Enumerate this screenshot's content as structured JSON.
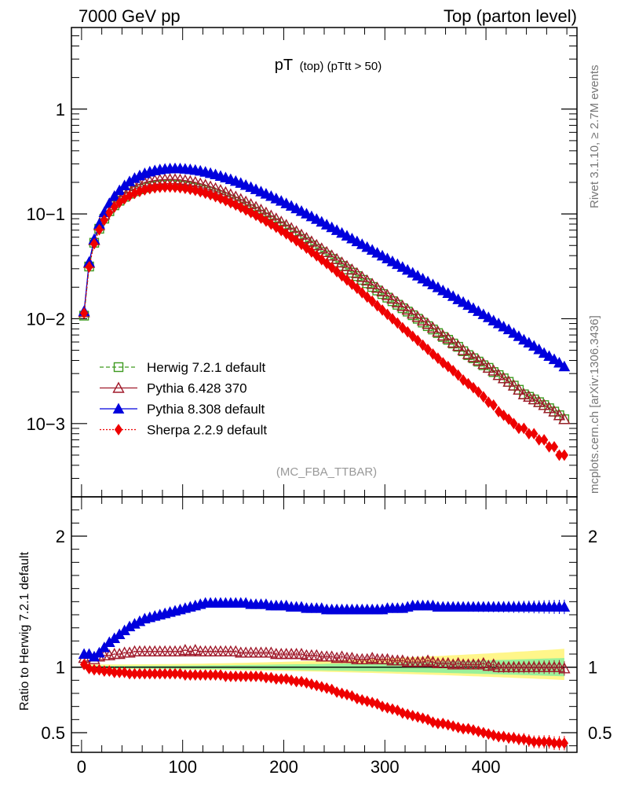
{
  "header": {
    "left": "7000 GeV pp",
    "right": "Top (parton level)",
    "title_main": "pT",
    "title_sub": "(top) (pTtt > 50)",
    "analysis": "(MC_FBA_TTBAR)"
  },
  "side_labels": {
    "rivet": "Rivet 3.1.10, ≥ 2.7M events",
    "mcplots": "mcplots.cern.ch [arXiv:1306.3436]"
  },
  "colors": {
    "herwig": "#3d9a1f",
    "pythia6": "#a0192a",
    "pythia8": "#0000dd",
    "sherpa": "#ee0000",
    "band_green": "#9af09a",
    "band_yellow": "#fff68a"
  },
  "chart_data": [
    {
      "type": "line",
      "scale": "log",
      "xlim": [
        -10,
        490
      ],
      "ylim": [
        0.0002,
        6
      ],
      "ylabel": "",
      "xlabel": "",
      "yticks": [
        {
          "value": 1,
          "label": "1"
        },
        {
          "value": 0.1,
          "label": "10−1"
        },
        {
          "value": 0.01,
          "label": "10−2"
        },
        {
          "value": 0.001,
          "label": "10−3"
        }
      ],
      "legend_position": "lower-left",
      "x": [
        2.5,
        7.5,
        12.5,
        17.5,
        22.5,
        27.5,
        32.5,
        37.5,
        42.5,
        47.5,
        52.5,
        57.5,
        62.5,
        67.5,
        72.5,
        77.5,
        82.5,
        87.5,
        92.5,
        97.5,
        102.5,
        107.5,
        112.5,
        117.5,
        122.5,
        127.5,
        132.5,
        137.5,
        142.5,
        147.5,
        152.5,
        157.5,
        162.5,
        167.5,
        172.5,
        177.5,
        182.5,
        187.5,
        192.5,
        197.5,
        202.5,
        207.5,
        212.5,
        217.5,
        222.5,
        227.5,
        232.5,
        237.5,
        242.5,
        247.5,
        252.5,
        257.5,
        262.5,
        267.5,
        272.5,
        277.5,
        282.5,
        287.5,
        292.5,
        297.5,
        302.5,
        307.5,
        312.5,
        317.5,
        322.5,
        327.5,
        332.5,
        337.5,
        342.5,
        347.5,
        352.5,
        357.5,
        362.5,
        367.5,
        372.5,
        377.5,
        382.5,
        387.5,
        392.5,
        397.5,
        402.5,
        407.5,
        412.5,
        417.5,
        422.5,
        427.5,
        432.5,
        437.5,
        442.5,
        447.5,
        452.5,
        457.5,
        462.5,
        467.5,
        472.5,
        477.5
      ],
      "series": [
        {
          "name": "Herwig 7.2.1 default",
          "marker": "open-square",
          "line": "dashed",
          "values": [
            0.0107,
            0.0315,
            0.0531,
            0.0722,
            0.0901,
            0.1061,
            0.1208,
            0.1336,
            0.1456,
            0.1559,
            0.1645,
            0.1719,
            0.1782,
            0.183,
            0.1867,
            0.1891,
            0.1903,
            0.1905,
            0.1897,
            0.188,
            0.1853,
            0.182,
            0.1779,
            0.1732,
            0.1679,
            0.1623,
            0.1562,
            0.15,
            0.1436,
            0.137,
            0.1305,
            0.1238,
            0.1172,
            0.1109,
            0.1047,
            0.0984,
            0.0926,
            0.0868,
            0.0815,
            0.0763,
            0.0711,
            0.0665,
            0.062,
            0.0577,
            0.0538,
            0.05,
            0.0464,
            0.0432,
            0.0401,
            0.0372,
            0.0345,
            0.0319,
            0.0296,
            0.0275,
            0.0255,
            0.0235,
            0.0218,
            0.0201,
            0.0186,
            0.0172,
            0.0159,
            0.0147,
            0.0136,
            0.0126,
            0.0117,
            0.0108,
            0.01,
            0.0092,
            0.0085,
            0.0079,
            0.0073,
            0.0067,
            0.0063,
            0.0058,
            0.0054,
            0.0049,
            0.0045,
            0.0042,
            0.0039,
            0.0036,
            0.0034,
            0.0031,
            0.0029,
            0.0027,
            0.0025,
            0.0023,
            0.0021,
            0.0019,
            0.0018,
            0.0017,
            0.0016,
            0.0015,
            0.0014,
            0.0013,
            0.0012,
            0.0011
          ]
        },
        {
          "name": "Pythia 6.428 370",
          "marker": "open-triangle",
          "line": "solid",
          "values": [
            0.0115,
            0.034,
            0.0561,
            0.0777,
            0.0983,
            0.1159,
            0.1329,
            0.1473,
            0.1618,
            0.1737,
            0.1839,
            0.192,
            0.1994,
            0.2049,
            0.2088,
            0.2117,
            0.213,
            0.2137,
            0.2133,
            0.2115,
            0.2085,
            0.2046,
            0.2004,
            0.1946,
            0.1885,
            0.182,
            0.175,
            0.168,
            0.1604,
            0.1531,
            0.1456,
            0.1379,
            0.1305,
            0.1233,
            0.1162,
            0.1092,
            0.1025,
            0.0961,
            0.09,
            0.084,
            0.0782,
            0.073,
            0.068,
            0.0632,
            0.0587,
            0.0544,
            0.0504,
            0.0467,
            0.0431,
            0.04,
            0.037,
            0.0343,
            0.0317,
            0.0294,
            0.0271,
            0.025,
            0.0231,
            0.0214,
            0.0197,
            0.0182,
            0.0168,
            0.0155,
            0.0143,
            0.0132,
            0.0122,
            0.0112,
            0.0104,
            0.0096,
            0.0089,
            0.0082,
            0.0075,
            0.0069,
            0.0065,
            0.0059,
            0.0055,
            0.005,
            0.0046,
            0.0043,
            0.004,
            0.0037,
            0.0034,
            0.0032,
            0.0029,
            0.0027,
            0.0025,
            0.0023,
            0.0021,
            0.0019,
            0.0018,
            0.0017,
            0.0016,
            0.0015,
            0.0014,
            0.0013,
            0.0012,
            0.0011
          ]
        },
        {
          "name": "Pythia 8.308 default",
          "marker": "filled-triangle",
          "line": "solid",
          "values": [
            0.0118,
            0.0347,
            0.0573,
            0.0803,
            0.1036,
            0.1262,
            0.1478,
            0.1675,
            0.1867,
            0.2037,
            0.2193,
            0.2321,
            0.2435,
            0.2525,
            0.2595,
            0.2648,
            0.2684,
            0.2705,
            0.2714,
            0.2707,
            0.2687,
            0.2658,
            0.262,
            0.2572,
            0.2514,
            0.2445,
            0.2374,
            0.2297,
            0.2219,
            0.2137,
            0.2054,
            0.1969,
            0.1881,
            0.1797,
            0.1715,
            0.1632,
            0.1554,
            0.1476,
            0.1401,
            0.1328,
            0.1257,
            0.119,
            0.1126,
            0.1063,
            0.1003,
            0.0946,
            0.0891,
            0.0839,
            0.0789,
            0.0743,
            0.0699,
            0.0657,
            0.0618,
            0.0581,
            0.0546,
            0.0513,
            0.0482,
            0.0453,
            0.0425,
            0.0399,
            0.0375,
            0.0352,
            0.0331,
            0.0311,
            0.0292,
            0.0274,
            0.0257,
            0.0241,
            0.0226,
            0.0212,
            0.0199,
            0.0186,
            0.0175,
            0.0164,
            0.0153,
            0.0144,
            0.0135,
            0.0126,
            0.0118,
            0.011,
            0.0103,
            0.0096,
            0.009,
            0.0084,
            0.0079,
            0.0073,
            0.0068,
            0.0063,
            0.0059,
            0.0055,
            0.0051,
            0.0047,
            0.0044,
            0.0041,
            0.0038,
            0.0035
          ]
        },
        {
          "name": "Sherpa 2.2.9 default",
          "marker": "filled-diamond",
          "line": "dotted",
          "values": [
            0.0113,
            0.0312,
            0.0519,
            0.0706,
            0.0873,
            0.1028,
            0.1162,
            0.1283,
            0.1393,
            0.1487,
            0.1569,
            0.1639,
            0.1696,
            0.1742,
            0.1776,
            0.1796,
            0.1806,
            0.1806,
            0.1797,
            0.1779,
            0.1751,
            0.1719,
            0.1677,
            0.163,
            0.1578,
            0.1524,
            0.1463,
            0.1403,
            0.1342,
            0.1279,
            0.1217,
            0.1153,
            0.109,
            0.103,
            0.097,
            0.0911,
            0.0854,
            0.0798,
            0.0745,
            0.0694,
            0.0645,
            0.0598,
            0.0554,
            0.0512,
            0.0472,
            0.0434,
            0.0399,
            0.0366,
            0.0336,
            0.0308,
            0.0281,
            0.0256,
            0.0234,
            0.0213,
            0.0195,
            0.0177,
            0.0161,
            0.0147,
            0.0133,
            0.0121,
            0.011,
            0.01,
            0.0091,
            0.0082,
            0.0075,
            0.0068,
            0.0062,
            0.0056,
            0.0051,
            0.0046,
            0.0042,
            0.0038,
            0.0035,
            0.0032,
            0.0029,
            0.0026,
            0.0024,
            0.0022,
            0.002,
            0.0018,
            0.0016,
            0.0015,
            0.0013,
            0.0012,
            0.0011,
            0.001,
            0.0009,
            0.0009,
            0.0008,
            0.0008,
            0.0007,
            0.0007,
            0.0006,
            0.0006,
            0.0005,
            0.0005
          ]
        }
      ]
    },
    {
      "type": "line",
      "scale": "linear",
      "xlim": [
        -10,
        490
      ],
      "ylim": [
        0.35,
        2.3
      ],
      "ylabel": "Ratio to Herwig 7.2.1 default",
      "yticks": [
        {
          "value": 0.5,
          "label": "0.5"
        },
        {
          "value": 1,
          "label": "1"
        },
        {
          "value": 2,
          "label": "2"
        }
      ],
      "xticks": [
        {
          "value": 0,
          "label": "0"
        },
        {
          "value": 100,
          "label": "100"
        },
        {
          "value": 200,
          "label": "200"
        },
        {
          "value": 300,
          "label": "300"
        },
        {
          "value": 400,
          "label": "400"
        }
      ],
      "series": [
        {
          "name": "Pythia 6.428 370",
          "values": [
            1.07,
            1.08,
            1.06,
            1.08,
            1.09,
            1.09,
            1.1,
            1.1,
            1.11,
            1.11,
            1.12,
            1.12,
            1.12,
            1.12,
            1.12,
            1.12,
            1.12,
            1.12,
            1.12,
            1.12,
            1.13,
            1.12,
            1.13,
            1.12,
            1.12,
            1.12,
            1.12,
            1.12,
            1.12,
            1.12,
            1.12,
            1.11,
            1.11,
            1.11,
            1.11,
            1.11,
            1.11,
            1.11,
            1.1,
            1.1,
            1.1,
            1.1,
            1.1,
            1.1,
            1.09,
            1.09,
            1.09,
            1.08,
            1.08,
            1.08,
            1.07,
            1.08,
            1.07,
            1.07,
            1.06,
            1.06,
            1.06,
            1.07,
            1.06,
            1.06,
            1.06,
            1.05,
            1.05,
            1.05,
            1.04,
            1.04,
            1.04,
            1.04,
            1.05,
            1.04,
            1.03,
            1.03,
            1.03,
            1.02,
            1.03,
            1.02,
            1.02,
            1.02,
            1.02,
            1.03,
            1.01,
            1.02,
            1.0,
            1.0,
            1.0,
            1.0,
            1.0,
            1.0,
            1.0,
            1.0,
            1.0,
            1.0,
            1.0,
            1.0,
            1.0,
            0.99
          ]
        },
        {
          "name": "Pythia 8.308 default",
          "values": [
            1.1,
            1.1,
            1.08,
            1.11,
            1.15,
            1.19,
            1.22,
            1.25,
            1.28,
            1.31,
            1.33,
            1.35,
            1.37,
            1.38,
            1.39,
            1.4,
            1.41,
            1.42,
            1.43,
            1.44,
            1.45,
            1.46,
            1.47,
            1.48,
            1.49,
            1.49,
            1.49,
            1.49,
            1.49,
            1.49,
            1.49,
            1.49,
            1.49,
            1.48,
            1.48,
            1.48,
            1.48,
            1.47,
            1.47,
            1.47,
            1.47,
            1.46,
            1.46,
            1.46,
            1.45,
            1.45,
            1.45,
            1.45,
            1.44,
            1.44,
            1.44,
            1.44,
            1.44,
            1.44,
            1.44,
            1.44,
            1.44,
            1.44,
            1.44,
            1.44,
            1.45,
            1.45,
            1.45,
            1.45,
            1.46,
            1.47,
            1.47,
            1.47,
            1.47,
            1.47,
            1.46,
            1.46,
            1.46,
            1.46,
            1.46,
            1.46,
            1.46,
            1.46,
            1.46,
            1.46,
            1.46,
            1.46,
            1.46,
            1.46,
            1.46,
            1.46,
            1.46,
            1.46,
            1.46,
            1.46,
            1.46,
            1.46,
            1.46,
            1.46,
            1.46,
            1.46
          ]
        },
        {
          "name": "Sherpa 2.2.9 default",
          "values": [
            1.02,
            0.99,
            0.98,
            0.98,
            0.97,
            0.97,
            0.96,
            0.96,
            0.96,
            0.95,
            0.95,
            0.95,
            0.95,
            0.95,
            0.95,
            0.95,
            0.95,
            0.95,
            0.95,
            0.95,
            0.94,
            0.94,
            0.94,
            0.94,
            0.94,
            0.94,
            0.94,
            0.94,
            0.93,
            0.93,
            0.93,
            0.93,
            0.93,
            0.93,
            0.93,
            0.93,
            0.92,
            0.92,
            0.91,
            0.91,
            0.91,
            0.9,
            0.89,
            0.89,
            0.88,
            0.87,
            0.86,
            0.85,
            0.84,
            0.83,
            0.81,
            0.8,
            0.79,
            0.78,
            0.76,
            0.75,
            0.74,
            0.73,
            0.72,
            0.7,
            0.69,
            0.68,
            0.67,
            0.65,
            0.64,
            0.63,
            0.62,
            0.61,
            0.6,
            0.58,
            0.57,
            0.57,
            0.56,
            0.55,
            0.54,
            0.53,
            0.53,
            0.52,
            0.51,
            0.5,
            0.49,
            0.48,
            0.47,
            0.47,
            0.46,
            0.46,
            0.45,
            0.45,
            0.44,
            0.43,
            0.43,
            0.43,
            0.43,
            0.42,
            0.42,
            0.42
          ]
        }
      ]
    }
  ]
}
